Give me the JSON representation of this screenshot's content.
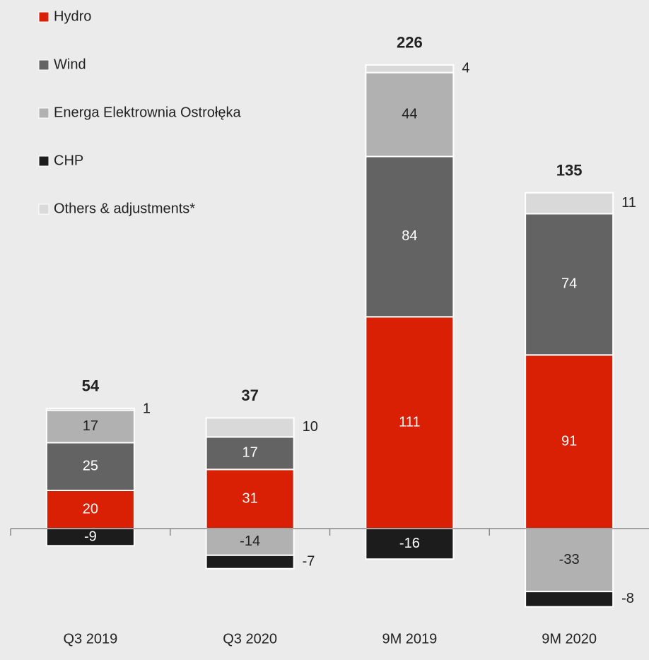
{
  "chart_data": {
    "type": "stacked_bar",
    "categories": [
      "Q3 2019",
      "Q3 2020",
      "9M 2019",
      "9M 2020"
    ],
    "series": [
      {
        "name": "Hydro",
        "color": "#d91f04",
        "values": [
          20,
          31,
          111,
          91
        ]
      },
      {
        "name": "Wind",
        "color": "#636363",
        "values": [
          25,
          17,
          84,
          74
        ]
      },
      {
        "name": "Energa Elektrownia Ostrołęka",
        "color": "#b1b1b1",
        "values": [
          17,
          -14,
          44,
          -33
        ]
      },
      {
        "name": "CHP",
        "color": "#1c1c1c",
        "values": [
          -9,
          -7,
          -16,
          -8
        ]
      },
      {
        "name": "Others & adjustments*",
        "color": "#d9d9d9",
        "values": [
          1,
          10,
          4,
          11
        ]
      }
    ],
    "totals": [
      54,
      37,
      226,
      135
    ],
    "ylim": [
      -45,
      270
    ],
    "legend": "top-left"
  }
}
